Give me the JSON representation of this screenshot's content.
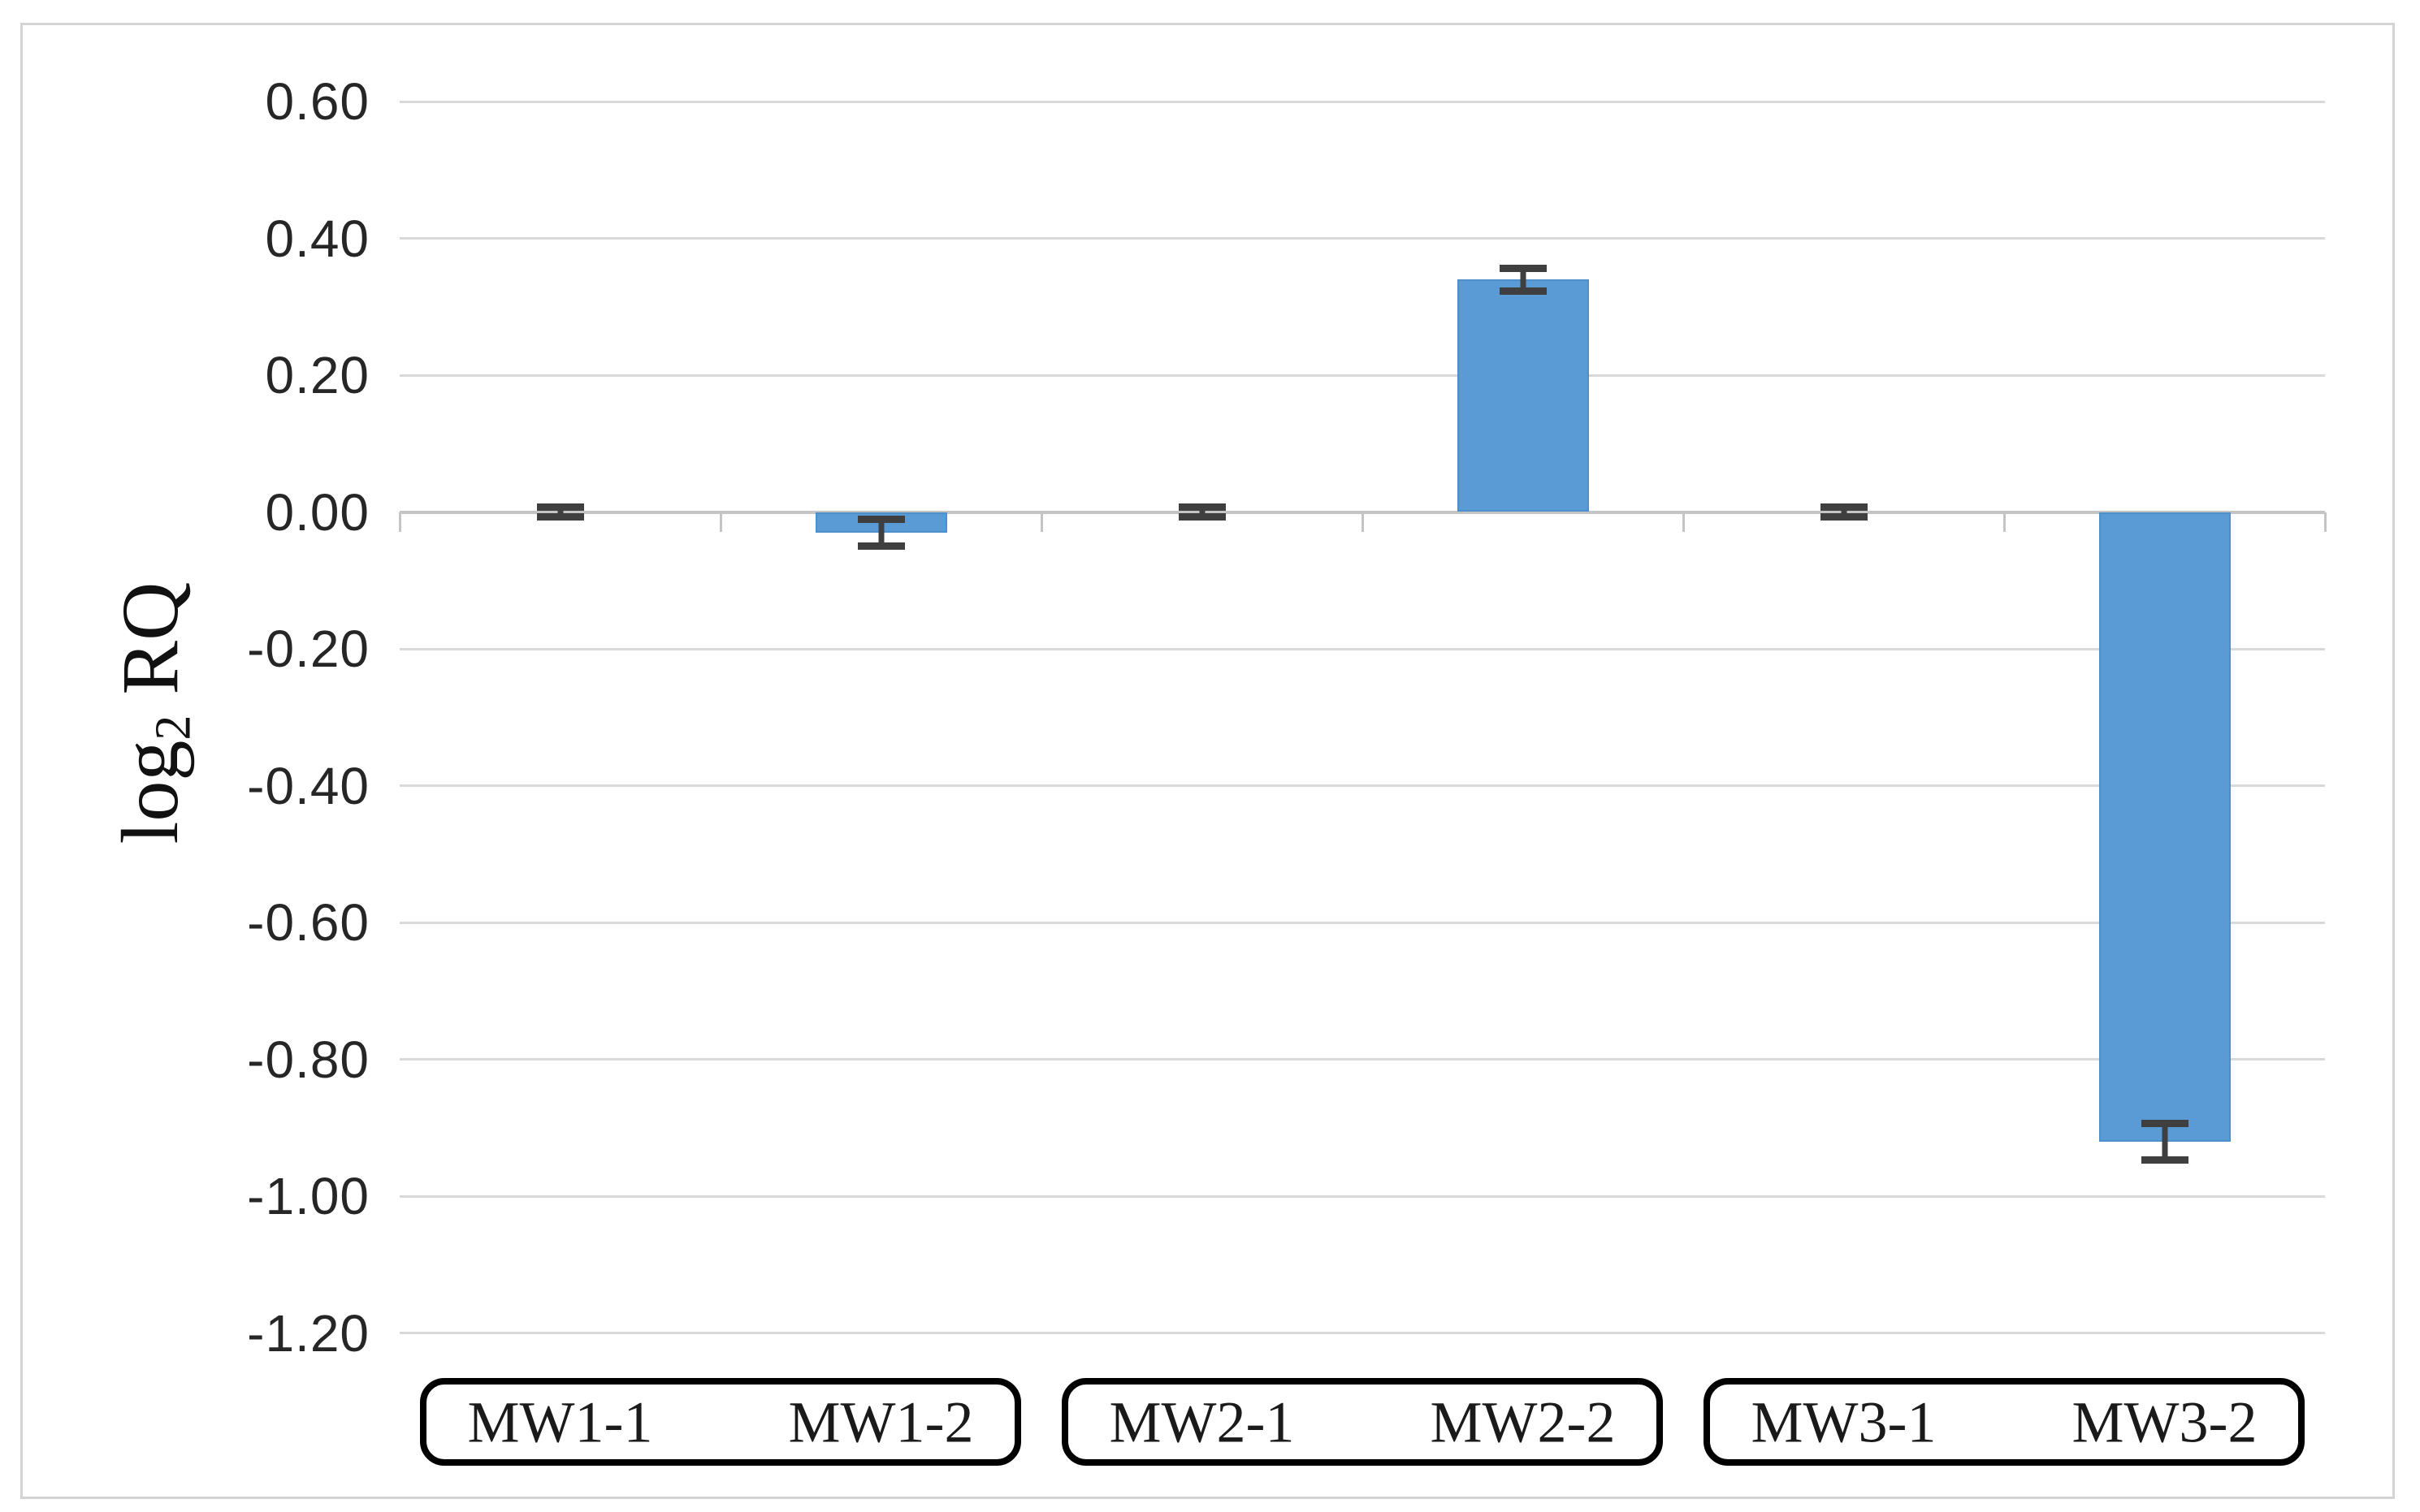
{
  "figure": {
    "background_color": "#FFFFFF",
    "border_color": "#D3D3D3"
  },
  "y_axis": {
    "title": "log2 RQ",
    "title_parts": {
      "base": "log",
      "sub": "2",
      "rest": " RQ"
    },
    "tick_labels": [
      "0.60",
      "0.40",
      "0.20",
      "0.00",
      "-0.20",
      "-0.40",
      "-0.60",
      "-0.80",
      "-1.00",
      "-1.20"
    ]
  },
  "chart_data": {
    "type": "bar",
    "title": "",
    "xlabel": "",
    "ylabel": "log2 RQ",
    "categories": [
      "MW1-1",
      "MW1-2",
      "MW2-1",
      "MW2-2",
      "MW3-1",
      "MW3-2"
    ],
    "values": [
      0.0,
      -0.03,
      0.0,
      0.34,
      0.0,
      -0.92
    ],
    "error_bars": [
      0.013,
      0.025,
      0.013,
      0.022,
      0.013,
      0.032
    ],
    "category_groups": [
      [
        "MW1-1",
        "MW1-2"
      ],
      [
        "MW2-1",
        "MW2-2"
      ],
      [
        "MW3-1",
        "MW3-2"
      ]
    ],
    "yticks": [
      0.6,
      0.4,
      0.2,
      0.0,
      -0.2,
      -0.4,
      -0.6,
      -0.8,
      -1.0,
      -1.2
    ],
    "ytick_labels": [
      "0.60",
      "0.40",
      "0.20",
      "0.00",
      "-0.20",
      "-0.40",
      "-0.60",
      "-0.80",
      "-1.00",
      "-1.20"
    ],
    "ylim": [
      -1.2,
      0.6
    ],
    "ytick_step": 0.2,
    "grid": true,
    "legend": false,
    "bar_color": "#5B9BD5",
    "error_bar_color": "#3F3F3F",
    "gridline_color": "#D9D9D9",
    "axis_line_color": "#C4C4C4"
  }
}
